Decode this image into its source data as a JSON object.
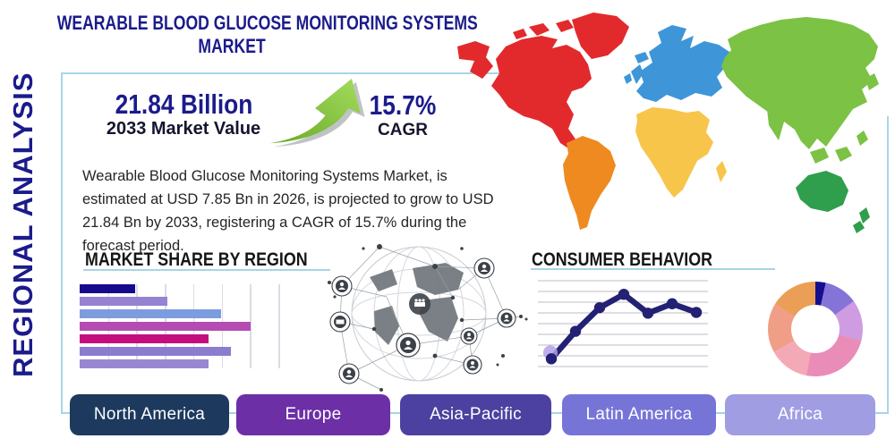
{
  "header": {
    "title_line1": "WEARABLE BLOOD GLUCOSE MONITORING SYSTEMS",
    "title_line2": "MARKET",
    "side_label": "REGIONAL ANALYSIS"
  },
  "stats": {
    "market_value": "21.84 Billion",
    "market_value_label": "2033 Market Value",
    "cagr_value": "15.7%",
    "cagr_label": "CAGR"
  },
  "description_lines": [
    "Wearable Blood Glucose Monitoring Systems Market, is",
    "estimated at USD 7.85 Bn in 2026, is projected to grow to USD",
    "21.84 Bn by 2033, registering a CAGR of 15.7% during the",
    "forecast period."
  ],
  "sections": {
    "market_share_title": "MARKET SHARE BY REGION",
    "consumer_behavior_title": "CONSUMER BEHAVIOR"
  },
  "regions": [
    {
      "label": "North America",
      "color": "#1d3a5e"
    },
    {
      "label": "Europe",
      "color": "#6c2fa6"
    },
    {
      "label": "Asia-Pacific",
      "color": "#4c41a0"
    },
    {
      "label": "Latin America",
      "color": "#7774d8"
    },
    {
      "label": "Africa",
      "color": "#a19de3"
    }
  ],
  "map": {
    "region_colors": {
      "north_america": "#e22a2c",
      "south_america": "#ef8a20",
      "europe": "#3e96d8",
      "africa": "#f6c54a",
      "asia": "#7cc244",
      "australia": "#2f9e4d"
    }
  },
  "accent": {
    "frame_blue": "#a8d4e8",
    "title_navy": "#1b1b8c",
    "arrow_green": "#7ab82d"
  },
  "chart_data": [
    {
      "type": "bar",
      "title": "MARKET SHARE BY REGION",
      "orientation": "horizontal",
      "values": [
        28,
        44,
        71,
        86,
        65,
        76,
        65
      ],
      "xlim": [
        0,
        100
      ],
      "grid": true,
      "colors": [
        "#160b8c",
        "#9583d2",
        "#7d9bdf",
        "#b44cb4",
        "#c50d7d",
        "#8c7ccd",
        "#9886d2"
      ]
    },
    {
      "type": "line",
      "title": "CONSUMER BEHAVIOR",
      "x": [
        1,
        2,
        3,
        4,
        5,
        6,
        7
      ],
      "values": [
        3,
        38,
        68,
        85,
        61,
        73,
        62
      ],
      "ylim": [
        0,
        100
      ],
      "grid": true,
      "line_color": "#242074",
      "first_point_highlight_color": "#b3a0e6"
    },
    {
      "type": "pie",
      "subtype": "donut",
      "slices": [
        {
          "color": "#140f8f",
          "value": 3.5
        },
        {
          "color": "#8574d8",
          "value": 11.5
        },
        {
          "color": "#cf9ce2",
          "value": 14
        },
        {
          "color": "#e98cb8",
          "value": 24
        },
        {
          "color": "#f4aab6",
          "value": 14
        },
        {
          "color": "#f19e86",
          "value": 17
        },
        {
          "color": "#eb9e55",
          "value": 16
        }
      ]
    }
  ]
}
